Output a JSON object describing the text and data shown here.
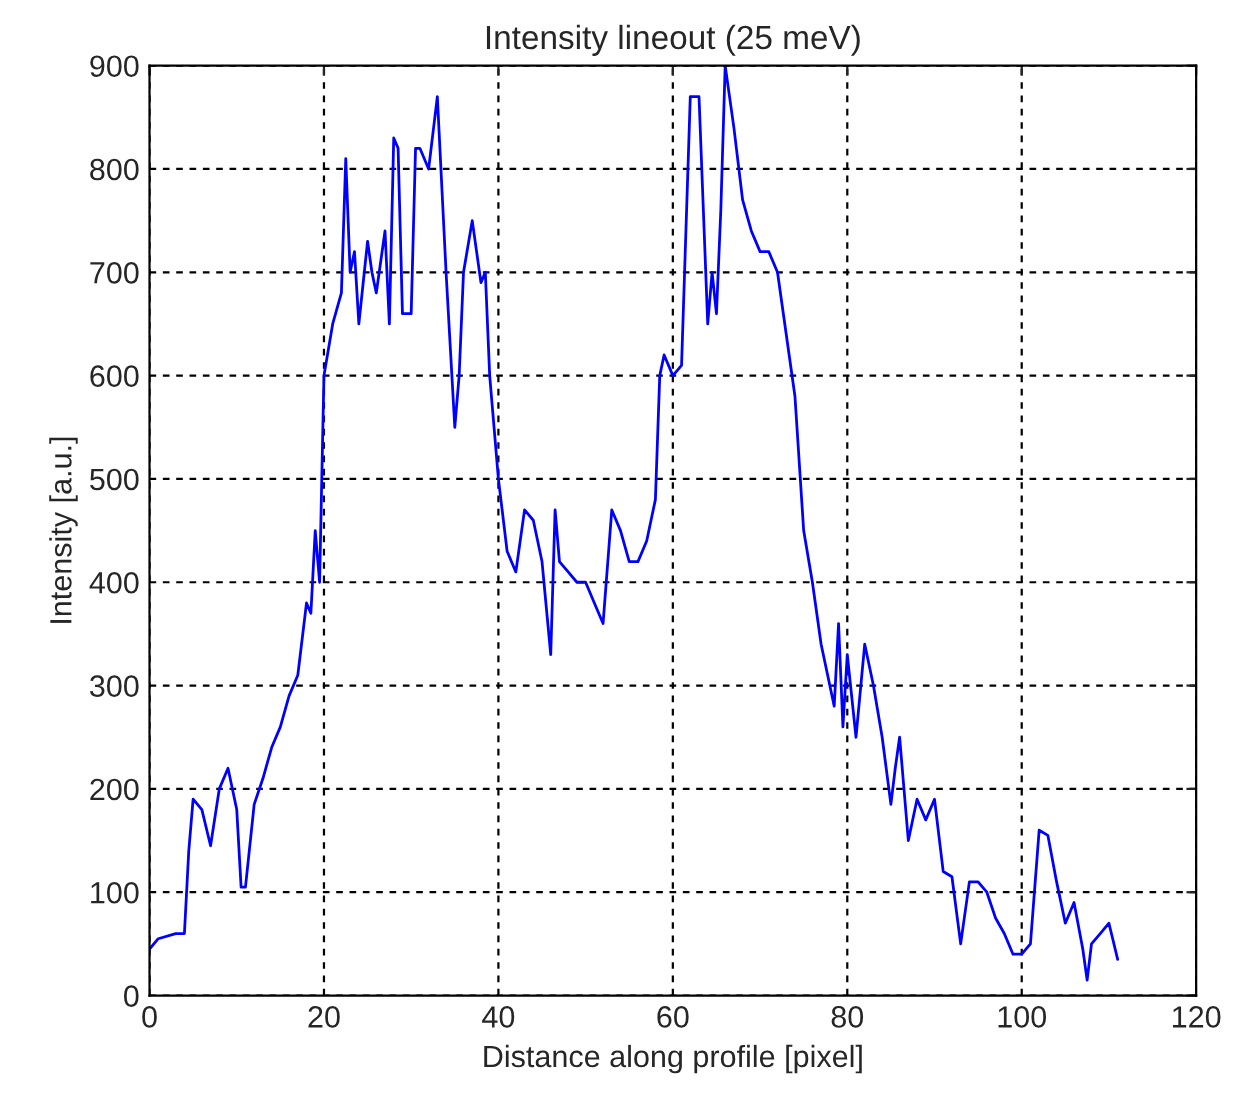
{
  "chart_data": {
    "type": "line",
    "title": "Intensity lineout (25 meV)",
    "xlabel": "Distance along profile [pixel]",
    "ylabel": "Intensity [a.u.]",
    "xlim": [
      0,
      120
    ],
    "xticks": [
      0,
      20,
      40,
      60,
      80,
      100,
      120
    ],
    "ylim": [
      0,
      900
    ],
    "yticks": [
      0,
      100,
      200,
      300,
      400,
      500,
      600,
      700,
      800,
      900
    ],
    "grid": true,
    "line_style": "solid",
    "marker": "none",
    "series": [
      {
        "color": "#0000ff",
        "x": [
          0,
          1,
          3,
          4,
          4.5,
          5,
          6,
          7,
          8,
          9,
          10,
          10.5,
          11,
          12,
          13,
          14,
          15,
          16,
          17,
          18,
          18.5,
          19,
          19.5,
          20,
          21,
          22,
          22.5,
          23,
          23.5,
          24,
          25,
          25.5,
          26,
          27,
          27.5,
          28,
          28.5,
          29,
          30,
          30.5,
          31,
          32,
          33,
          34,
          35,
          35.5,
          36,
          37,
          38,
          38.5,
          39,
          40,
          41,
          42,
          43,
          44,
          45,
          46,
          46.5,
          47,
          48,
          49,
          50,
          51,
          52,
          53,
          54,
          55,
          56,
          57,
          58,
          58.5,
          59,
          60,
          61,
          62,
          63,
          64,
          64.5,
          65,
          65.5,
          66,
          67,
          68,
          69,
          70,
          71,
          72,
          73,
          74,
          75,
          76,
          77,
          78,
          78.5,
          79,
          79.5,
          80,
          81,
          82,
          83,
          84,
          85,
          85.5,
          86,
          87,
          88,
          89,
          90,
          91,
          92,
          93,
          94,
          95,
          96,
          97,
          98,
          99,
          100,
          101,
          102,
          103,
          104,
          105,
          106,
          107,
          107.5,
          108,
          109,
          110,
          111
        ],
        "values": [
          45,
          55,
          60,
          60,
          140,
          190,
          180,
          145,
          200,
          220,
          180,
          105,
          105,
          185,
          210,
          240,
          260,
          290,
          310,
          380,
          370,
          450,
          400,
          600,
          650,
          680,
          810,
          700,
          720,
          650,
          730,
          700,
          680,
          740,
          650,
          830,
          820,
          660,
          660,
          820,
          820,
          800,
          870,
          700,
          550,
          600,
          700,
          750,
          690,
          700,
          600,
          500,
          430,
          410,
          470,
          460,
          420,
          330,
          470,
          420,
          410,
          400,
          400,
          380,
          360,
          470,
          450,
          420,
          420,
          440,
          480,
          600,
          620,
          600,
          610,
          870,
          870,
          650,
          700,
          660,
          760,
          900,
          840,
          770,
          740,
          720,
          720,
          700,
          640,
          580,
          450,
          400,
          340,
          300,
          280,
          360,
          260,
          330,
          250,
          340,
          300,
          250,
          185,
          220,
          250,
          150,
          190,
          170,
          190,
          120,
          115,
          50,
          110,
          110,
          100,
          75,
          60,
          40,
          40,
          50,
          160,
          155,
          110,
          70,
          90,
          45,
          15,
          50,
          60,
          70,
          35
        ]
      }
    ]
  }
}
